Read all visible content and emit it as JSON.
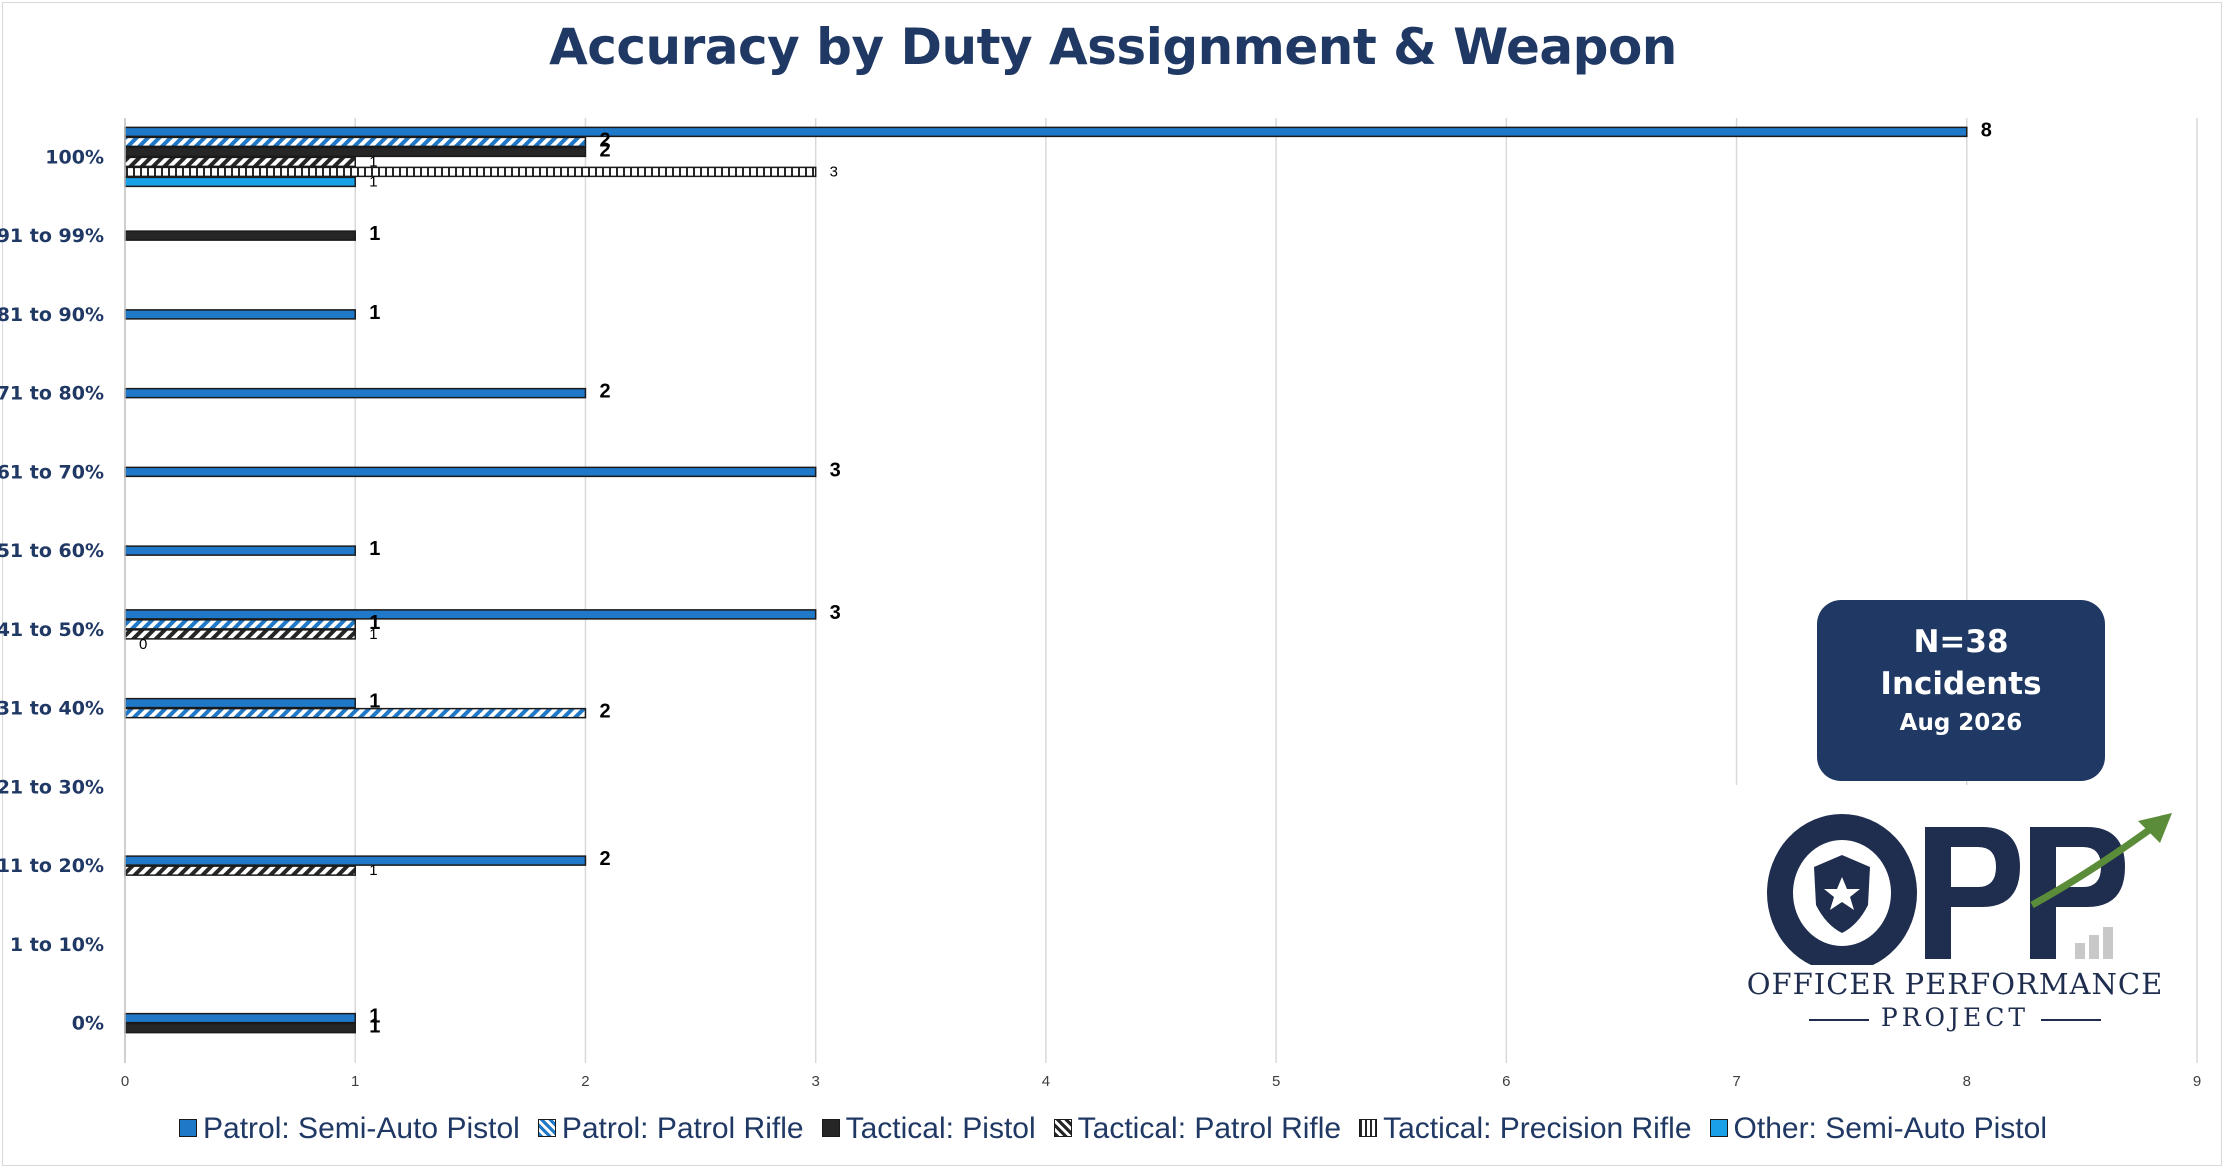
{
  "chart_data": {
    "type": "bar",
    "orientation": "horizontal",
    "title": "Accuracy by Duty Assignment & Weapon",
    "categories": [
      "100%",
      "91 to 99%",
      "81 to 90%",
      "71 to 80%",
      "61 to 70%",
      "51 to 60%",
      "41 to 50%",
      "31 to 40%",
      "21 to 30%",
      "11 to 20%",
      "1 to 10%",
      "0%"
    ],
    "xlim": [
      0,
      9
    ],
    "xticks": [
      0,
      1,
      2,
      3,
      4,
      5,
      6,
      7,
      8,
      9
    ],
    "grid": true,
    "legend_position": "bottom",
    "series": [
      {
        "name": "Patrol: Semi-Auto Pistol",
        "color": "#1f78c8",
        "pattern": "solid",
        "values": [
          8,
          null,
          1,
          2,
          3,
          1,
          3,
          1,
          null,
          2,
          null,
          1
        ],
        "labels": [
          "8",
          "",
          "1",
          "2",
          "3",
          "1",
          "3",
          "1",
          "",
          "2",
          "",
          "1"
        ]
      },
      {
        "name": "Patrol: Patrol Rifle",
        "color": "#1f78c8",
        "pattern": "diagonal-stripe",
        "values": [
          2,
          null,
          null,
          null,
          null,
          null,
          1,
          2,
          null,
          null,
          null,
          null
        ],
        "labels": [
          "2",
          "",
          "",
          "",
          "",
          "",
          "1",
          "2",
          "",
          "",
          "",
          ""
        ]
      },
      {
        "name": "Tactical: Pistol",
        "color": "#262626",
        "pattern": "solid",
        "values": [
          2,
          1,
          null,
          null,
          null,
          null,
          null,
          null,
          null,
          null,
          null,
          1
        ],
        "labels": [
          "2",
          "1",
          "",
          "",
          "",
          "",
          "",
          "",
          "",
          "",
          "",
          "1"
        ]
      },
      {
        "name": "Tactical: Patrol Rifle",
        "color": "#262626",
        "pattern": "diagonal-stripe",
        "values": [
          1,
          null,
          null,
          null,
          null,
          null,
          1,
          null,
          null,
          1,
          null,
          null
        ],
        "labels": [
          "1",
          "",
          "",
          "",
          "",
          "",
          "1",
          "",
          "",
          "1",
          "",
          ""
        ]
      },
      {
        "name": "Tactical: Precision Rifle",
        "color": "#262626",
        "pattern": "vertical-stripe",
        "values": [
          3,
          null,
          null,
          null,
          null,
          null,
          0,
          null,
          null,
          null,
          null,
          null
        ],
        "labels": [
          "3",
          "",
          "",
          "",
          "",
          "",
          "0",
          "",
          "",
          "",
          "",
          ""
        ]
      },
      {
        "name": "Other: Semi-Auto Pistol",
        "color": "#19a0e6",
        "pattern": "solid",
        "values": [
          1,
          null,
          null,
          null,
          null,
          null,
          null,
          null,
          null,
          null,
          null,
          null
        ],
        "labels": [
          "1",
          "",
          "",
          "",
          "",
          "",
          "",
          "",
          "",
          "",
          "",
          ""
        ]
      }
    ]
  },
  "info_box": {
    "count": "N=38",
    "label": "Incidents",
    "date": "Aug 2026"
  },
  "logo": {
    "mark": "OPP",
    "line1": "OFFICER PERFORMANCE",
    "line2": "PROJECT",
    "colors": {
      "navy": "#1f2d4e",
      "green": "#5b8c3a",
      "gray": "#c8c8c8"
    }
  }
}
